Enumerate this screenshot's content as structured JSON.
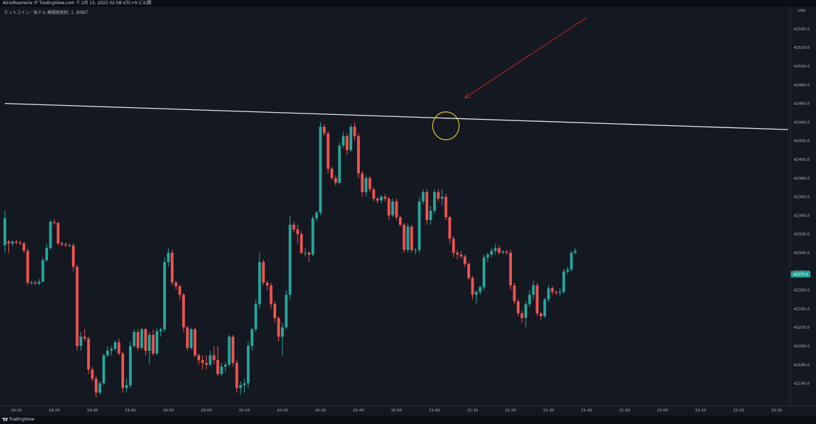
{
  "header": {
    "caption": "AlcioRosmerie が TradingView.com で 2月 13, 2022 02:58 UTC+9 に公開",
    "symbol": "ビットコイン／米ドル 無期限契約, 1, BYBIT",
    "currency": "USD"
  },
  "footer": {
    "brand": "TradingView"
  },
  "colors": {
    "up": "#26a69a",
    "down": "#ef5350",
    "background": "#141821",
    "trendline": "#e8e8e8",
    "arrow": "#cc2222",
    "circle": "#e6c72f"
  },
  "chart_data": {
    "type": "candlestick",
    "ylabel": "USD",
    "ylim": [
      42150,
      42550
    ],
    "xlim": [
      "19:07",
      "22:33"
    ],
    "y_ticks": [
      "42540.0",
      "42520.0",
      "42500.0",
      "42480.0",
      "42460.0",
      "42440.0",
      "42420.0",
      "42400.0",
      "42380.0",
      "42360.0",
      "42340.0",
      "42320.0",
      "42300.0",
      "42280.0",
      "42260.0",
      "42240.0",
      "42220.0",
      "42200.0",
      "42180.0",
      "42160.0"
    ],
    "x_ticks": [
      "19:10",
      "19:20",
      "19:30",
      "19:40",
      "19:50",
      "20:00",
      "20:10",
      "20:20",
      "20:30",
      "20:40",
      "20:50",
      "21:00",
      "21:10",
      "21:20",
      "21:30",
      "21:40",
      "21:50",
      "22:00",
      "22:10",
      "22:20",
      "22:30"
    ],
    "last_price": "42277.0",
    "annotations": [
      {
        "type": "trendline",
        "from": [
          "19:07",
          42460
        ],
        "to": [
          "22:33",
          42432
        ]
      },
      {
        "type": "circle",
        "center": [
          "21:03",
          42436
        ]
      },
      {
        "type": "arrow",
        "from": [
          "21:40",
          42552
        ],
        "to": [
          "21:08",
          42466
        ]
      }
    ],
    "candles": [
      {
        "t": "19:07",
        "o": 42308,
        "h": 42345,
        "l": 42300,
        "c": 42337
      },
      {
        "t": "19:08",
        "o": 42312,
        "h": 42314,
        "l": 42300,
        "c": 42310
      },
      {
        "t": "19:09",
        "o": 42310,
        "h": 42313,
        "l": 42307,
        "c": 42312
      },
      {
        "t": "19:10",
        "o": 42312,
        "h": 42314,
        "l": 42309,
        "c": 42311
      },
      {
        "t": "19:11",
        "o": 42311,
        "h": 42313,
        "l": 42308,
        "c": 42310
      },
      {
        "t": "19:12",
        "o": 42310,
        "h": 42312,
        "l": 42300,
        "c": 42302
      },
      {
        "t": "19:13",
        "o": 42302,
        "h": 42305,
        "l": 42265,
        "c": 42268
      },
      {
        "t": "19:14",
        "o": 42268,
        "h": 42270,
        "l": 42266,
        "c": 42268
      },
      {
        "t": "19:15",
        "o": 42268,
        "h": 42270,
        "l": 42265,
        "c": 42267
      },
      {
        "t": "19:16",
        "o": 42267,
        "h": 42272,
        "l": 42265,
        "c": 42269
      },
      {
        "t": "19:17",
        "o": 42269,
        "h": 42295,
        "l": 42268,
        "c": 42292
      },
      {
        "t": "19:18",
        "o": 42292,
        "h": 42310,
        "l": 42290,
        "c": 42305
      },
      {
        "t": "19:19",
        "o": 42305,
        "h": 42335,
        "l": 42303,
        "c": 42333
      },
      {
        "t": "19:20",
        "o": 42333,
        "h": 42336,
        "l": 42330,
        "c": 42332
      },
      {
        "t": "19:21",
        "o": 42332,
        "h": 42333,
        "l": 42308,
        "c": 42310
      },
      {
        "t": "19:22",
        "o": 42310,
        "h": 42312,
        "l": 42307,
        "c": 42309
      },
      {
        "t": "19:23",
        "o": 42309,
        "h": 42311,
        "l": 42306,
        "c": 42308
      },
      {
        "t": "19:24",
        "o": 42308,
        "h": 42310,
        "l": 42306,
        "c": 42308
      },
      {
        "t": "19:25",
        "o": 42308,
        "h": 42310,
        "l": 42280,
        "c": 42285
      },
      {
        "t": "19:26",
        "o": 42285,
        "h": 42287,
        "l": 42195,
        "c": 42200
      },
      {
        "t": "19:27",
        "o": 42200,
        "h": 42215,
        "l": 42195,
        "c": 42210
      },
      {
        "t": "19:28",
        "o": 42210,
        "h": 42218,
        "l": 42205,
        "c": 42208
      },
      {
        "t": "19:29",
        "o": 42208,
        "h": 42210,
        "l": 42170,
        "c": 42175
      },
      {
        "t": "19:30",
        "o": 42175,
        "h": 42178,
        "l": 42162,
        "c": 42165
      },
      {
        "t": "19:31",
        "o": 42165,
        "h": 42168,
        "l": 42145,
        "c": 42150
      },
      {
        "t": "19:32",
        "o": 42150,
        "h": 42162,
        "l": 42148,
        "c": 42160
      },
      {
        "t": "19:33",
        "o": 42160,
        "h": 42192,
        "l": 42158,
        "c": 42190
      },
      {
        "t": "19:34",
        "o": 42190,
        "h": 42200,
        "l": 42188,
        "c": 42195
      },
      {
        "t": "19:35",
        "o": 42195,
        "h": 42200,
        "l": 42190,
        "c": 42197
      },
      {
        "t": "19:36",
        "o": 42197,
        "h": 42206,
        "l": 42195,
        "c": 42204
      },
      {
        "t": "19:37",
        "o": 42204,
        "h": 42208,
        "l": 42190,
        "c": 42192
      },
      {
        "t": "19:38",
        "o": 42192,
        "h": 42194,
        "l": 42150,
        "c": 42155
      },
      {
        "t": "19:39",
        "o": 42155,
        "h": 42165,
        "l": 42150,
        "c": 42158
      },
      {
        "t": "19:40",
        "o": 42158,
        "h": 42205,
        "l": 42155,
        "c": 42200
      },
      {
        "t": "19:41",
        "o": 42200,
        "h": 42218,
        "l": 42198,
        "c": 42215
      },
      {
        "t": "19:42",
        "o": 42215,
        "h": 42218,
        "l": 42195,
        "c": 42198
      },
      {
        "t": "19:43",
        "o": 42198,
        "h": 42220,
        "l": 42196,
        "c": 42218
      },
      {
        "t": "19:44",
        "o": 42218,
        "h": 42220,
        "l": 42190,
        "c": 42195
      },
      {
        "t": "19:45",
        "o": 42195,
        "h": 42215,
        "l": 42180,
        "c": 42212
      },
      {
        "t": "19:46",
        "o": 42212,
        "h": 42218,
        "l": 42190,
        "c": 42192
      },
      {
        "t": "19:47",
        "o": 42192,
        "h": 42220,
        "l": 42190,
        "c": 42216
      },
      {
        "t": "19:48",
        "o": 42216,
        "h": 42220,
        "l": 42210,
        "c": 42218
      },
      {
        "t": "19:49",
        "o": 42218,
        "h": 42295,
        "l": 42215,
        "c": 42290
      },
      {
        "t": "19:50",
        "o": 42290,
        "h": 42305,
        "l": 42285,
        "c": 42300
      },
      {
        "t": "19:51",
        "o": 42300,
        "h": 42303,
        "l": 42265,
        "c": 42268
      },
      {
        "t": "19:52",
        "o": 42268,
        "h": 42270,
        "l": 42260,
        "c": 42264
      },
      {
        "t": "19:53",
        "o": 42264,
        "h": 42266,
        "l": 42250,
        "c": 42255
      },
      {
        "t": "19:54",
        "o": 42255,
        "h": 42257,
        "l": 42215,
        "c": 42220
      },
      {
        "t": "19:55",
        "o": 42220,
        "h": 42222,
        "l": 42195,
        "c": 42198
      },
      {
        "t": "19:56",
        "o": 42198,
        "h": 42220,
        "l": 42196,
        "c": 42218
      },
      {
        "t": "19:57",
        "o": 42218,
        "h": 42220,
        "l": 42188,
        "c": 42190
      },
      {
        "t": "19:58",
        "o": 42190,
        "h": 42192,
        "l": 42180,
        "c": 42185
      },
      {
        "t": "19:59",
        "o": 42185,
        "h": 42190,
        "l": 42175,
        "c": 42182
      },
      {
        "t": "20:00",
        "o": 42182,
        "h": 42190,
        "l": 42175,
        "c": 42180
      },
      {
        "t": "20:01",
        "o": 42180,
        "h": 42195,
        "l": 42178,
        "c": 42190
      },
      {
        "t": "20:02",
        "o": 42190,
        "h": 42200,
        "l": 42180,
        "c": 42185
      },
      {
        "t": "20:03",
        "o": 42185,
        "h": 42200,
        "l": 42168,
        "c": 42170
      },
      {
        "t": "20:04",
        "o": 42170,
        "h": 42182,
        "l": 42168,
        "c": 42178
      },
      {
        "t": "20:05",
        "o": 42178,
        "h": 42183,
        "l": 42172,
        "c": 42180
      },
      {
        "t": "20:06",
        "o": 42180,
        "h": 42212,
        "l": 42178,
        "c": 42210
      },
      {
        "t": "20:07",
        "o": 42210,
        "h": 42212,
        "l": 42178,
        "c": 42182
      },
      {
        "t": "20:08",
        "o": 42182,
        "h": 42185,
        "l": 42150,
        "c": 42155
      },
      {
        "t": "20:09",
        "o": 42155,
        "h": 42162,
        "l": 42148,
        "c": 42158
      },
      {
        "t": "20:10",
        "o": 42158,
        "h": 42165,
        "l": 42150,
        "c": 42160
      },
      {
        "t": "20:11",
        "o": 42160,
        "h": 42205,
        "l": 42155,
        "c": 42200
      },
      {
        "t": "20:12",
        "o": 42200,
        "h": 42220,
        "l": 42195,
        "c": 42218
      },
      {
        "t": "20:13",
        "o": 42218,
        "h": 42250,
        "l": 42215,
        "c": 42245
      },
      {
        "t": "20:14",
        "o": 42245,
        "h": 42300,
        "l": 42240,
        "c": 42290
      },
      {
        "t": "20:15",
        "o": 42290,
        "h": 42293,
        "l": 42265,
        "c": 42268
      },
      {
        "t": "20:16",
        "o": 42268,
        "h": 42270,
        "l": 42260,
        "c": 42265
      },
      {
        "t": "20:17",
        "o": 42265,
        "h": 42268,
        "l": 42240,
        "c": 42245
      },
      {
        "t": "20:18",
        "o": 42245,
        "h": 42248,
        "l": 42225,
        "c": 42230
      },
      {
        "t": "20:19",
        "o": 42230,
        "h": 42232,
        "l": 42205,
        "c": 42210
      },
      {
        "t": "20:20",
        "o": 42210,
        "h": 42225,
        "l": 42190,
        "c": 42220
      },
      {
        "t": "20:21",
        "o": 42220,
        "h": 42260,
        "l": 42218,
        "c": 42255
      },
      {
        "t": "20:22",
        "o": 42255,
        "h": 42340,
        "l": 42250,
        "c": 42330
      },
      {
        "t": "20:23",
        "o": 42330,
        "h": 42333,
        "l": 42322,
        "c": 42325
      },
      {
        "t": "20:24",
        "o": 42325,
        "h": 42330,
        "l": 42310,
        "c": 42320
      },
      {
        "t": "20:25",
        "o": 42320,
        "h": 42323,
        "l": 42298,
        "c": 42300
      },
      {
        "t": "20:26",
        "o": 42300,
        "h": 42305,
        "l": 42296,
        "c": 42300
      },
      {
        "t": "20:27",
        "o": 42300,
        "h": 42302,
        "l": 42290,
        "c": 42298
      },
      {
        "t": "20:28",
        "o": 42298,
        "h": 42340,
        "l": 42296,
        "c": 42337
      },
      {
        "t": "20:29",
        "o": 42337,
        "h": 42345,
        "l": 42334,
        "c": 42343
      },
      {
        "t": "20:30",
        "o": 42343,
        "h": 42440,
        "l": 42340,
        "c": 42435
      },
      {
        "t": "20:31",
        "o": 42435,
        "h": 42438,
        "l": 42425,
        "c": 42428
      },
      {
        "t": "20:32",
        "o": 42428,
        "h": 42430,
        "l": 42385,
        "c": 42390
      },
      {
        "t": "20:33",
        "o": 42390,
        "h": 42392,
        "l": 42378,
        "c": 42380
      },
      {
        "t": "20:34",
        "o": 42380,
        "h": 42383,
        "l": 42372,
        "c": 42375
      },
      {
        "t": "20:35",
        "o": 42375,
        "h": 42418,
        "l": 42373,
        "c": 42415
      },
      {
        "t": "20:36",
        "o": 42415,
        "h": 42430,
        "l": 42412,
        "c": 42425
      },
      {
        "t": "20:37",
        "o": 42425,
        "h": 42428,
        "l": 42405,
        "c": 42410
      },
      {
        "t": "20:38",
        "o": 42410,
        "h": 42438,
        "l": 42408,
        "c": 42435
      },
      {
        "t": "20:39",
        "o": 42435,
        "h": 42440,
        "l": 42420,
        "c": 42425
      },
      {
        "t": "20:40",
        "o": 42425,
        "h": 42428,
        "l": 42380,
        "c": 42385
      },
      {
        "t": "20:41",
        "o": 42385,
        "h": 42388,
        "l": 42360,
        "c": 42365
      },
      {
        "t": "20:42",
        "o": 42365,
        "h": 42383,
        "l": 42360,
        "c": 42380
      },
      {
        "t": "20:43",
        "o": 42380,
        "h": 42382,
        "l": 42365,
        "c": 42368
      },
      {
        "t": "20:44",
        "o": 42368,
        "h": 42370,
        "l": 42355,
        "c": 42358
      },
      {
        "t": "20:45",
        "o": 42358,
        "h": 42360,
        "l": 42353,
        "c": 42356
      },
      {
        "t": "20:46",
        "o": 42356,
        "h": 42362,
        "l": 42353,
        "c": 42360
      },
      {
        "t": "20:47",
        "o": 42360,
        "h": 42363,
        "l": 42355,
        "c": 42358
      },
      {
        "t": "20:48",
        "o": 42358,
        "h": 42360,
        "l": 42335,
        "c": 42340
      },
      {
        "t": "20:49",
        "o": 42340,
        "h": 42358,
        "l": 42338,
        "c": 42355
      },
      {
        "t": "20:50",
        "o": 42355,
        "h": 42358,
        "l": 42335,
        "c": 42338
      },
      {
        "t": "20:51",
        "o": 42338,
        "h": 42340,
        "l": 42328,
        "c": 42330
      },
      {
        "t": "20:52",
        "o": 42330,
        "h": 42332,
        "l": 42300,
        "c": 42303
      },
      {
        "t": "20:53",
        "o": 42303,
        "h": 42332,
        "l": 42300,
        "c": 42328
      },
      {
        "t": "20:54",
        "o": 42328,
        "h": 42330,
        "l": 42300,
        "c": 42303
      },
      {
        "t": "20:55",
        "o": 42303,
        "h": 42305,
        "l": 42298,
        "c": 42303
      },
      {
        "t": "20:56",
        "o": 42303,
        "h": 42360,
        "l": 42300,
        "c": 42355
      },
      {
        "t": "20:57",
        "o": 42355,
        "h": 42368,
        "l": 42352,
        "c": 42365
      },
      {
        "t": "20:58",
        "o": 42365,
        "h": 42368,
        "l": 42330,
        "c": 42335
      },
      {
        "t": "20:59",
        "o": 42335,
        "h": 42350,
        "l": 42330,
        "c": 42345
      },
      {
        "t": "21:00",
        "o": 42345,
        "h": 42368,
        "l": 42342,
        "c": 42365
      },
      {
        "t": "21:01",
        "o": 42365,
        "h": 42368,
        "l": 42355,
        "c": 42358
      },
      {
        "t": "21:02",
        "o": 42358,
        "h": 42368,
        "l": 42350,
        "c": 42360
      },
      {
        "t": "21:03",
        "o": 42360,
        "h": 42363,
        "l": 42335,
        "c": 42338
      },
      {
        "t": "21:04",
        "o": 42338,
        "h": 42340,
        "l": 42310,
        "c": 42315
      },
      {
        "t": "21:05",
        "o": 42315,
        "h": 42318,
        "l": 42295,
        "c": 42300
      },
      {
        "t": "21:06",
        "o": 42300,
        "h": 42303,
        "l": 42293,
        "c": 42298
      },
      {
        "t": "21:07",
        "o": 42298,
        "h": 42302,
        "l": 42294,
        "c": 42296
      },
      {
        "t": "21:08",
        "o": 42296,
        "h": 42298,
        "l": 42285,
        "c": 42288
      },
      {
        "t": "21:09",
        "o": 42288,
        "h": 42290,
        "l": 42270,
        "c": 42273
      },
      {
        "t": "21:10",
        "o": 42273,
        "h": 42275,
        "l": 42250,
        "c": 42255
      },
      {
        "t": "21:11",
        "o": 42255,
        "h": 42260,
        "l": 42245,
        "c": 42258
      },
      {
        "t": "21:12",
        "o": 42258,
        "h": 42265,
        "l": 42255,
        "c": 42263
      },
      {
        "t": "21:13",
        "o": 42263,
        "h": 42298,
        "l": 42260,
        "c": 42295
      },
      {
        "t": "21:14",
        "o": 42295,
        "h": 42300,
        "l": 42290,
        "c": 42298
      },
      {
        "t": "21:15",
        "o": 42298,
        "h": 42305,
        "l": 42295,
        "c": 42302
      },
      {
        "t": "21:16",
        "o": 42302,
        "h": 42310,
        "l": 42298,
        "c": 42305
      },
      {
        "t": "21:17",
        "o": 42305,
        "h": 42308,
        "l": 42298,
        "c": 42300
      },
      {
        "t": "21:18",
        "o": 42300,
        "h": 42303,
        "l": 42298,
        "c": 42301
      },
      {
        "t": "21:19",
        "o": 42301,
        "h": 42303,
        "l": 42298,
        "c": 42300
      },
      {
        "t": "21:20",
        "o": 42300,
        "h": 42303,
        "l": 42260,
        "c": 42265
      },
      {
        "t": "21:21",
        "o": 42265,
        "h": 42268,
        "l": 42245,
        "c": 42248
      },
      {
        "t": "21:22",
        "o": 42248,
        "h": 42250,
        "l": 42232,
        "c": 42235
      },
      {
        "t": "21:23",
        "o": 42235,
        "h": 42238,
        "l": 42225,
        "c": 42230
      },
      {
        "t": "21:24",
        "o": 42230,
        "h": 42248,
        "l": 42220,
        "c": 42245
      },
      {
        "t": "21:25",
        "o": 42245,
        "h": 42260,
        "l": 42242,
        "c": 42255
      },
      {
        "t": "21:26",
        "o": 42255,
        "h": 42270,
        "l": 42250,
        "c": 42265
      },
      {
        "t": "21:27",
        "o": 42265,
        "h": 42268,
        "l": 42232,
        "c": 42235
      },
      {
        "t": "21:28",
        "o": 42235,
        "h": 42237,
        "l": 42228,
        "c": 42232
      },
      {
        "t": "21:29",
        "o": 42232,
        "h": 42252,
        "l": 42230,
        "c": 42250
      },
      {
        "t": "21:30",
        "o": 42250,
        "h": 42265,
        "l": 42247,
        "c": 42262
      },
      {
        "t": "21:31",
        "o": 42262,
        "h": 42264,
        "l": 42255,
        "c": 42258
      },
      {
        "t": "21:32",
        "o": 42258,
        "h": 42260,
        "l": 42255,
        "c": 42257
      },
      {
        "t": "21:33",
        "o": 42257,
        "h": 42262,
        "l": 42254,
        "c": 42258
      },
      {
        "t": "21:34",
        "o": 42258,
        "h": 42283,
        "l": 42256,
        "c": 42280
      },
      {
        "t": "21:35",
        "o": 42280,
        "h": 42285,
        "l": 42277,
        "c": 42282
      },
      {
        "t": "21:36",
        "o": 42282,
        "h": 42302,
        "l": 42280,
        "c": 42300
      },
      {
        "t": "21:37",
        "o": 42300,
        "h": 42305,
        "l": 42298,
        "c": 42302
      }
    ]
  }
}
